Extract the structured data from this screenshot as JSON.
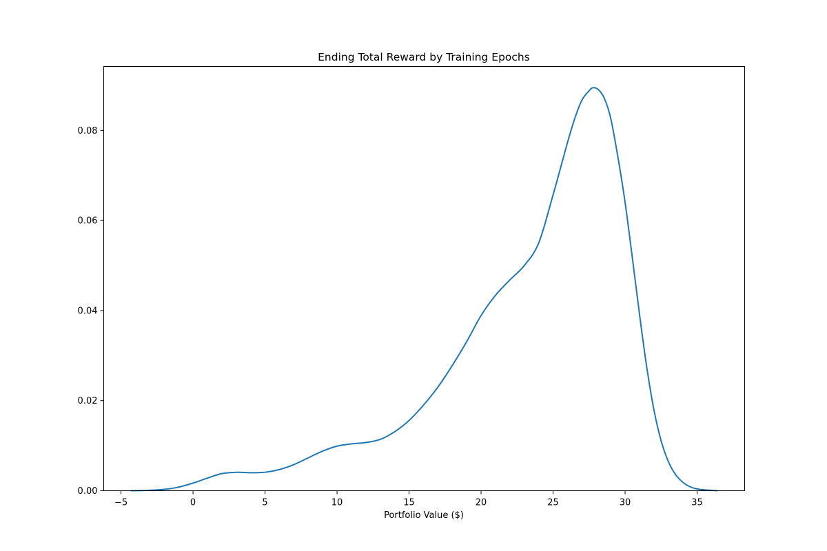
{
  "chart_data": {
    "type": "line",
    "title": "Ending Total Reward by Training Epochs",
    "xlabel": "Portfolio Value ($)",
    "ylabel": "",
    "xlim": [
      -6.2,
      38.3
    ],
    "ylim": [
      0,
      0.0942
    ],
    "xticks": [
      -5,
      0,
      5,
      10,
      15,
      20,
      25,
      30,
      35
    ],
    "xtick_labels": [
      "−5",
      "0",
      "5",
      "10",
      "15",
      "20",
      "25",
      "30",
      "35"
    ],
    "yticks": [
      0,
      0.02,
      0.04,
      0.06,
      0.08
    ],
    "ytick_labels": [
      "0.00",
      "0.02",
      "0.04",
      "0.06",
      "0.08"
    ],
    "grid": false,
    "colors": {
      "line": "#1f77b4"
    },
    "series": [
      {
        "name": "",
        "x": [
          -4.3,
          -3,
          -2,
          -1,
          0,
          1,
          2,
          3,
          4,
          5,
          6,
          7,
          8,
          9,
          10,
          11,
          12,
          13,
          14,
          15,
          16,
          17,
          18,
          19,
          20,
          21,
          22,
          23,
          24,
          25,
          26,
          26.5,
          27,
          27.5,
          27.8,
          28.2,
          28.6,
          29,
          29.5,
          30,
          30.5,
          31,
          31.5,
          32,
          32.5,
          33,
          33.5,
          34,
          34.5,
          35,
          35.5,
          36,
          36.4
        ],
        "y": [
          0.0,
          0.0001,
          0.0003,
          0.0008,
          0.0017,
          0.0028,
          0.0038,
          0.0041,
          0.004,
          0.0041,
          0.0047,
          0.0058,
          0.0073,
          0.0088,
          0.0099,
          0.0104,
          0.0107,
          0.0114,
          0.0131,
          0.0156,
          0.019,
          0.023,
          0.0278,
          0.0331,
          0.0389,
          0.0434,
          0.0468,
          0.05,
          0.055,
          0.0657,
          0.0773,
          0.0826,
          0.0867,
          0.0888,
          0.0895,
          0.0889,
          0.0868,
          0.0827,
          0.0741,
          0.064,
          0.0518,
          0.0392,
          0.0275,
          0.018,
          0.0111,
          0.0065,
          0.0036,
          0.0019,
          0.0009,
          0.0004,
          0.0002,
          0.0001,
          0.0
        ]
      }
    ]
  }
}
